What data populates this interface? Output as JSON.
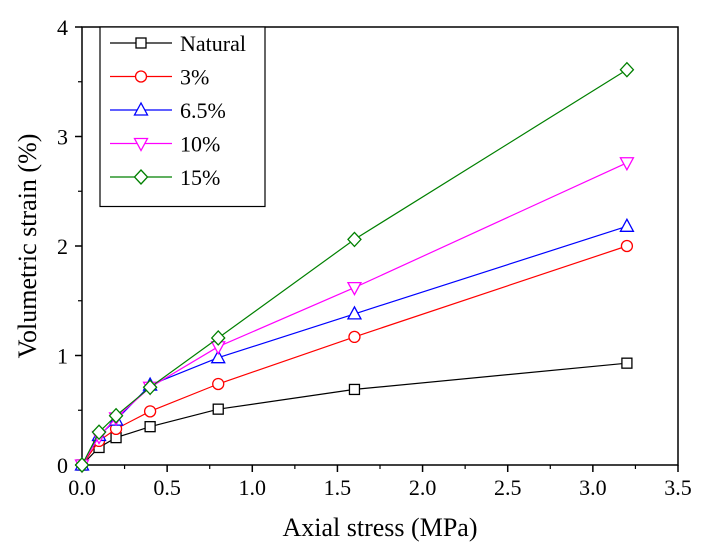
{
  "chart_data": {
    "type": "line",
    "title": "",
    "xlabel": "Axial stress (MPa)",
    "ylabel": "Volumetric strain (%)",
    "xlim": [
      0,
      3.5
    ],
    "ylim": [
      0,
      4
    ],
    "xticks": [
      "0.0",
      "0.5",
      "1.0",
      "1.5",
      "2.0",
      "2.5",
      "3.0",
      "3.5"
    ],
    "yticks": [
      "0",
      "1",
      "2",
      "3",
      "4"
    ],
    "grid": false,
    "legend_position": "top-left",
    "series": [
      {
        "name": "Natural",
        "color": "#000000",
        "marker": "square",
        "x": [
          0,
          0.1,
          0.2,
          0.4,
          0.8,
          1.6,
          3.2
        ],
        "y": [
          0,
          0.16,
          0.25,
          0.35,
          0.51,
          0.69,
          0.93
        ]
      },
      {
        "name": "3%",
        "color": "#ff0000",
        "marker": "circle",
        "x": [
          0,
          0.1,
          0.2,
          0.4,
          0.8,
          1.6,
          3.2
        ],
        "y": [
          0,
          0.22,
          0.33,
          0.49,
          0.74,
          1.17,
          2.0
        ]
      },
      {
        "name": "6.5%",
        "color": "#0000ff",
        "marker": "triangle-up",
        "x": [
          0,
          0.1,
          0.2,
          0.4,
          0.8,
          1.6,
          3.2
        ],
        "y": [
          0,
          0.27,
          0.41,
          0.73,
          0.98,
          1.38,
          2.18
        ]
      },
      {
        "name": "10%",
        "color": "#ff00ff",
        "marker": "triangle-down",
        "x": [
          0,
          0.1,
          0.2,
          0.4,
          0.8,
          1.6,
          3.2
        ],
        "y": [
          0,
          0.26,
          0.43,
          0.71,
          1.08,
          1.62,
          2.76
        ]
      },
      {
        "name": "15%",
        "color": "#008000",
        "marker": "diamond",
        "x": [
          0,
          0.1,
          0.2,
          0.4,
          0.8,
          1.6,
          3.2
        ],
        "y": [
          0,
          0.3,
          0.45,
          0.71,
          1.16,
          2.06,
          3.61
        ]
      }
    ]
  }
}
